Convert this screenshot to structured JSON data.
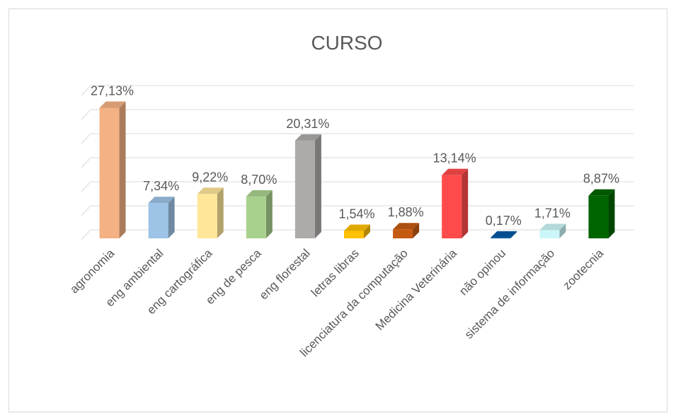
{
  "chart_data": {
    "type": "bar3d",
    "title": "CURSO",
    "categories": [
      "agronomia",
      "eng ambiental",
      "eng cartográfica",
      "eng de pesca",
      "eng florestal",
      "letras libras",
      "licenciatura da computação",
      "Medicina Veterinária",
      "não opinou",
      "sistema de informação",
      "zootecnia"
    ],
    "values": [
      27.13,
      7.34,
      9.22,
      8.7,
      20.31,
      1.54,
      1.88,
      13.14,
      0.17,
      1.71,
      8.87
    ],
    "value_labels": [
      "27,13%",
      "7,34%",
      "9,22%",
      "8,70%",
      "20,31%",
      "1,54%",
      "1,88%",
      "13,14%",
      "0,17%",
      "1,71%",
      "8,87%"
    ],
    "colors": [
      "#f4b183",
      "#9dc3e6",
      "#ffe699",
      "#a9d18e",
      "#aeaaaa",
      "#ffc000",
      "#c55a11",
      "#ff4b4b",
      "#0058a3",
      "#ccf7f8",
      "#006400"
    ],
    "ylim": [
      0,
      30
    ],
    "yticks": [
      0,
      5,
      10,
      15,
      20,
      25,
      30
    ],
    "grid": true
  }
}
